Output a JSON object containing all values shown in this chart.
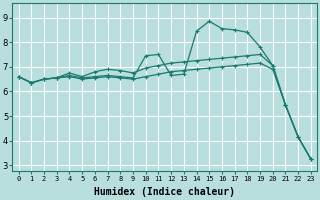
{
  "xlabel": "Humidex (Indice chaleur)",
  "bg_color": "#b8dede",
  "line_color": "#1a7a6e",
  "grid_color": "#ffffff",
  "xlim": [
    -0.5,
    23.5
  ],
  "ylim": [
    2.75,
    9.6
  ],
  "xticks": [
    0,
    1,
    2,
    3,
    4,
    5,
    6,
    7,
    8,
    9,
    10,
    11,
    12,
    13,
    14,
    15,
    16,
    17,
    18,
    19,
    20,
    21,
    22,
    23
  ],
  "yticks": [
    3,
    4,
    5,
    6,
    7,
    8,
    9
  ],
  "line1_x": [
    0,
    1,
    2,
    3,
    4,
    5,
    6,
    7,
    8,
    9,
    10,
    11,
    12,
    13,
    14,
    15,
    16,
    17,
    18,
    19,
    20,
    21,
    22,
    23
  ],
  "line1_y": [
    6.6,
    6.35,
    6.5,
    6.55,
    6.65,
    6.55,
    6.6,
    6.65,
    6.6,
    6.55,
    7.45,
    7.5,
    6.65,
    6.7,
    8.45,
    8.85,
    8.55,
    8.5,
    8.4,
    7.8,
    7.05,
    5.45,
    4.15,
    3.25
  ],
  "line2_x": [
    0,
    1,
    2,
    3,
    4,
    5,
    6,
    7,
    8,
    9,
    10,
    11,
    12,
    13,
    14,
    15,
    16,
    17,
    18,
    19,
    20,
    21,
    22,
    23
  ],
  "line2_y": [
    6.6,
    6.35,
    6.5,
    6.55,
    6.75,
    6.6,
    6.8,
    6.9,
    6.85,
    6.75,
    6.95,
    7.05,
    7.15,
    7.2,
    7.25,
    7.3,
    7.35,
    7.4,
    7.45,
    7.5,
    7.05,
    5.45,
    4.15,
    3.25
  ],
  "line3_x": [
    0,
    1,
    2,
    3,
    4,
    5,
    6,
    7,
    8,
    9,
    10,
    11,
    12,
    13,
    14,
    15,
    16,
    17,
    18,
    19,
    20,
    21,
    22,
    23
  ],
  "line3_y": [
    6.6,
    6.35,
    6.5,
    6.55,
    6.6,
    6.5,
    6.55,
    6.6,
    6.55,
    6.5,
    6.6,
    6.7,
    6.8,
    6.85,
    6.9,
    6.95,
    7.0,
    7.05,
    7.1,
    7.15,
    6.9,
    5.45,
    4.15,
    3.25
  ]
}
